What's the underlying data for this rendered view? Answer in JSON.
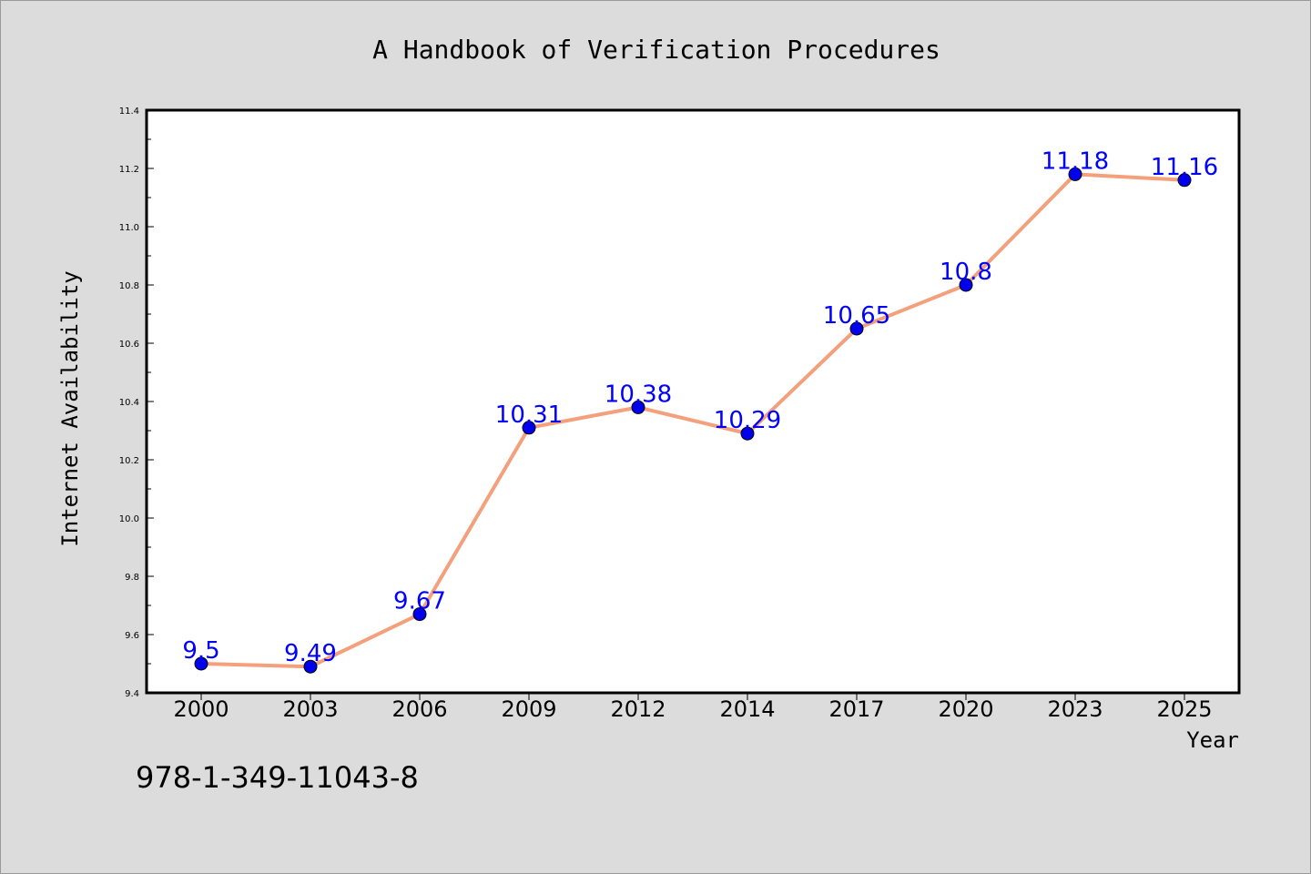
{
  "chart_data": {
    "type": "line",
    "title": "A Handbook of Verification Procedures",
    "xlabel": "Year",
    "ylabel": "Internet Availability",
    "categories": [
      "2000",
      "2003",
      "2006",
      "2009",
      "2012",
      "2014",
      "2017",
      "2020",
      "2023",
      "2025"
    ],
    "series": [
      {
        "values": [
          9.5,
          9.49,
          9.67,
          10.31,
          10.38,
          10.29,
          10.65,
          10.8,
          11.18,
          11.16
        ],
        "labels": [
          "9.5",
          "9.49",
          "9.67",
          "10.31",
          "10.38",
          "10.29",
          "10.65",
          "10.8",
          "11.18",
          "11.16"
        ],
        "line_color": "#f4a07c",
        "marker_color": "#0000ee",
        "label_color": "#0000ff"
      }
    ],
    "ylim": [
      9.4,
      11.4
    ],
    "yticks": [
      "9.4",
      "9.6",
      "9.8",
      "10.0",
      "10.2",
      "10.4",
      "10.6",
      "10.8",
      "11.0",
      "11.2",
      "11.4"
    ],
    "grid": false,
    "legend": "none"
  },
  "footer": {
    "isbn": "978-1-349-11043-8"
  },
  "colors": {
    "background": "#dcdcdc",
    "plot_area": "#ffffff"
  }
}
